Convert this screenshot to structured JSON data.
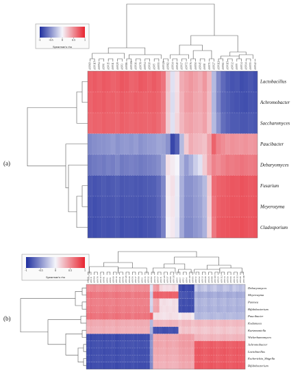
{
  "colors": {
    "negative": "#1f2f9f",
    "neutral": "#f5f5fb",
    "positive": "#e8242f",
    "dendrogram": "#555555"
  },
  "chart_data": [
    {
      "panel_label": "(a)",
      "type": "heatmap",
      "colorbar": {
        "title": "Spearman's rho",
        "ticks": [
          "-1",
          "-0.5",
          "0",
          "0.5",
          "1"
        ],
        "range": [
          -1,
          1
        ]
      },
      "rows": [
        "Lactobacillus",
        "Achromobacter",
        "Saccharomyces",
        "Paucibacter",
        "Debaryomyces",
        "Fusarium",
        "Meyerozyma",
        "Cladosporium"
      ],
      "columns": [
        "ASV69",
        "ASV117",
        "ASV94",
        "ASV6",
        "ASV15",
        "ASV11",
        "ASV29",
        "ASV3",
        "ASV86",
        "ASV106",
        "ASV16",
        "ASV78",
        "ASV54",
        "ASV10",
        "ASV5",
        "ASV55",
        "ASV126",
        "ASV82",
        "ASV14",
        "ASV40",
        "ASV17",
        "ASV72",
        "ASV76",
        "ASV50",
        "ASV45",
        "ASV8",
        "ASV71",
        "ASV27",
        "ASV112",
        "ASV61",
        "ASV115",
        "ASV32",
        "ASV9",
        "ASV34",
        "ASV14",
        "ASV55",
        "ASV42"
      ],
      "values": [
        [
          0.72,
          0.74,
          0.71,
          0.75,
          0.73,
          0.7,
          0.72,
          0.76,
          0.74,
          0.69,
          0.71,
          0.75,
          0.73,
          0.7,
          0.74,
          0.7,
          0.62,
          0.25,
          -0.1,
          0.1,
          0.35,
          0.4,
          0.45,
          0.4,
          0.35,
          0.45,
          0.3,
          -0.3,
          -0.55,
          -0.7,
          -0.78,
          -0.82,
          -0.8,
          -0.85,
          -0.83,
          -0.8,
          -0.84
        ],
        [
          0.7,
          0.73,
          0.72,
          0.74,
          0.71,
          0.72,
          0.7,
          0.74,
          0.72,
          0.7,
          0.73,
          0.72,
          0.7,
          0.71,
          0.72,
          0.69,
          0.6,
          0.22,
          -0.12,
          0.12,
          0.32,
          0.42,
          0.44,
          0.38,
          0.36,
          0.42,
          0.28,
          -0.32,
          -0.56,
          -0.72,
          -0.76,
          -0.8,
          -0.82,
          -0.83,
          -0.84,
          -0.81,
          -0.82
        ],
        [
          0.68,
          0.7,
          0.69,
          0.72,
          0.7,
          0.7,
          0.68,
          0.72,
          0.7,
          0.68,
          0.7,
          0.7,
          0.69,
          0.68,
          0.7,
          0.66,
          0.58,
          0.2,
          -0.1,
          0.15,
          0.3,
          0.38,
          0.4,
          0.36,
          0.34,
          0.4,
          0.26,
          -0.3,
          -0.5,
          -0.68,
          -0.74,
          -0.78,
          -0.78,
          -0.8,
          -0.8,
          -0.78,
          -0.8
        ],
        [
          -0.55,
          -0.52,
          -0.5,
          -0.5,
          -0.48,
          -0.45,
          -0.5,
          -0.47,
          -0.46,
          -0.48,
          -0.45,
          -0.5,
          -0.47,
          -0.45,
          -0.44,
          -0.4,
          -0.42,
          -0.5,
          -0.88,
          -0.75,
          -0.3,
          0.2,
          0.35,
          0.3,
          0.28,
          0.25,
          0.4,
          0.7,
          0.55,
          0.5,
          0.45,
          0.48,
          0.46,
          0.45,
          0.47,
          0.44,
          0.46
        ],
        [
          -0.65,
          -0.62,
          -0.6,
          -0.62,
          -0.58,
          -0.6,
          -0.55,
          -0.62,
          -0.6,
          -0.58,
          -0.6,
          -0.62,
          -0.6,
          -0.58,
          -0.56,
          -0.52,
          -0.4,
          0.1,
          0.05,
          0.0,
          -0.3,
          -0.45,
          -0.35,
          -0.2,
          -0.1,
          0.2,
          0.4,
          0.55,
          0.5,
          0.55,
          0.6,
          0.58,
          0.6,
          0.62,
          0.6,
          0.58,
          0.6
        ],
        [
          -0.8,
          -0.82,
          -0.8,
          -0.78,
          -0.8,
          -0.78,
          -0.76,
          -0.8,
          -0.79,
          -0.78,
          -0.8,
          -0.8,
          -0.78,
          -0.77,
          -0.76,
          -0.7,
          -0.55,
          0.05,
          0.1,
          -0.05,
          -0.35,
          -0.5,
          -0.5,
          -0.45,
          -0.4,
          -0.3,
          0.2,
          0.65,
          0.7,
          0.72,
          0.74,
          0.76,
          0.75,
          0.78,
          0.76,
          0.74,
          0.76
        ],
        [
          -0.82,
          -0.84,
          -0.82,
          -0.8,
          -0.81,
          -0.8,
          -0.78,
          -0.82,
          -0.8,
          -0.8,
          -0.81,
          -0.82,
          -0.8,
          -0.79,
          -0.78,
          -0.72,
          -0.56,
          0.04,
          0.08,
          -0.06,
          -0.36,
          -0.52,
          -0.52,
          -0.46,
          -0.42,
          -0.32,
          0.18,
          0.62,
          0.72,
          0.74,
          0.75,
          0.77,
          0.76,
          0.78,
          0.77,
          0.75,
          0.77
        ],
        [
          -0.84,
          -0.85,
          -0.83,
          -0.82,
          -0.83,
          -0.82,
          -0.8,
          -0.84,
          -0.82,
          -0.82,
          -0.83,
          -0.84,
          -0.82,
          -0.81,
          -0.8,
          -0.74,
          -0.58,
          0.02,
          0.06,
          -0.08,
          -0.38,
          -0.54,
          -0.54,
          -0.48,
          -0.44,
          -0.34,
          0.16,
          0.6,
          0.74,
          0.76,
          0.77,
          0.78,
          0.78,
          0.8,
          0.78,
          0.76,
          0.78
        ]
      ]
    },
    {
      "panel_label": "(b)",
      "type": "heatmap",
      "colorbar": {
        "title": "Spearman's rho",
        "ticks": [
          "-1",
          "-0.5",
          "0",
          "0.5",
          "1"
        ],
        "range": [
          -1,
          1
        ]
      },
      "rows": [
        "Debaryomyces",
        "Meyerozyma",
        "Pantoea",
        "Bifidobacterium",
        "Paucibacter",
        "Kodamaea",
        "Kurtzmaniella",
        "Wickerhamomyces",
        "Achromobacter",
        "Lactobacillus",
        "Escherichia_Shigella",
        "Bifidobacterium"
      ],
      "columns": [
        "ASV61",
        "ASV11",
        "ASV94",
        "ASV78",
        "ASV117",
        "ASV91",
        "ASV6",
        "ASV9",
        "ASV69",
        "ASV10",
        "ASV41",
        "ASV42",
        "ASV126",
        "ASV29",
        "ASV56",
        "ASV17",
        "ASV90",
        "ASV3",
        "ASV15",
        "ASV32",
        "ASV82",
        "ASV74",
        "ASV57",
        "ASV71",
        "ASV125",
        "ASV37",
        "ASV96",
        "ASV135",
        "ASV5",
        "ASV7",
        "ASV2",
        "ASV4",
        "ASV107",
        "ASV85",
        "ASV72",
        "ASV52",
        "ASV13",
        "ASV39",
        "ASV26",
        "ASV88",
        "ASV118",
        "ASV25",
        "ASV112",
        "ASV14",
        "ASV50",
        "ASV60",
        "ASV16",
        "ASV115",
        "ASV40",
        "ASV106"
      ],
      "values": [
        [
          0.5,
          0.5,
          0.52,
          0.48,
          0.5,
          0.52,
          0.5,
          0.48,
          0.5,
          0.52,
          0.5,
          0.48,
          0.5,
          0.5,
          0.46,
          0.5,
          0.5,
          0.48,
          0.5,
          0.5,
          -0.1,
          0.4,
          0.45,
          0.15,
          0.1,
          0.12,
          0.1,
          0.15,
          0.1,
          -0.85,
          -0.9,
          -0.85,
          -0.88,
          -0.9,
          -0.2,
          -0.3,
          -0.25,
          -0.2,
          -0.3,
          -0.25,
          -0.2,
          -0.28,
          -0.3,
          -0.22,
          -0.25,
          -0.3,
          -0.2,
          -0.25,
          -0.28,
          -0.22
        ],
        [
          0.6,
          0.62,
          0.6,
          0.58,
          0.6,
          0.62,
          0.6,
          0.58,
          0.6,
          0.62,
          0.6,
          0.58,
          0.6,
          0.6,
          0.56,
          0.6,
          0.6,
          0.58,
          0.6,
          0.6,
          -0.2,
          0.7,
          0.72,
          0.7,
          0.68,
          0.7,
          0.72,
          0.7,
          0.7,
          -0.8,
          -0.82,
          -0.8,
          -0.84,
          -0.82,
          -0.35,
          -0.4,
          -0.38,
          -0.35,
          -0.4,
          -0.38,
          -0.35,
          -0.4,
          -0.38,
          -0.35,
          -0.4,
          -0.38,
          -0.35,
          -0.4,
          -0.38,
          -0.35
        ],
        [
          0.55,
          0.58,
          0.56,
          0.55,
          0.56,
          0.58,
          0.55,
          0.56,
          0.55,
          0.58,
          0.56,
          0.55,
          0.56,
          0.55,
          0.54,
          0.56,
          0.55,
          0.56,
          0.55,
          0.56,
          -0.15,
          0.35,
          0.38,
          0.1,
          0.12,
          0.1,
          0.08,
          0.12,
          0.1,
          -0.82,
          -0.85,
          -0.82,
          -0.85,
          -0.84,
          -0.3,
          -0.35,
          -0.32,
          -0.3,
          -0.35,
          -0.32,
          -0.3,
          -0.35,
          -0.32,
          -0.3,
          -0.35,
          -0.32,
          -0.3,
          -0.35,
          -0.32,
          -0.3
        ],
        [
          0.58,
          0.6,
          0.58,
          0.56,
          0.58,
          0.6,
          0.58,
          0.56,
          0.58,
          0.6,
          0.58,
          0.56,
          0.58,
          0.58,
          0.55,
          0.58,
          0.58,
          0.56,
          0.58,
          0.58,
          -0.18,
          0.38,
          0.4,
          0.12,
          0.1,
          0.12,
          0.1,
          0.12,
          0.1,
          -0.84,
          -0.86,
          -0.84,
          -0.86,
          -0.85,
          -0.32,
          -0.36,
          -0.34,
          -0.32,
          -0.36,
          -0.34,
          -0.32,
          -0.36,
          -0.34,
          -0.32,
          -0.36,
          -0.34,
          -0.32,
          -0.36,
          -0.34,
          -0.32
        ],
        [
          0.62,
          0.64,
          0.62,
          0.6,
          0.62,
          0.64,
          0.62,
          0.6,
          0.62,
          0.64,
          0.62,
          0.6,
          0.62,
          0.62,
          0.58,
          0.62,
          0.62,
          0.6,
          0.62,
          0.62,
          0.7,
          0.1,
          0.12,
          0.1,
          0.08,
          0.1,
          0.12,
          0.1,
          0.1,
          0.05,
          0.1,
          0.08,
          0.1,
          0.05,
          -0.3,
          -0.32,
          -0.3,
          -0.28,
          -0.3,
          -0.32,
          -0.3,
          -0.28,
          -0.3,
          -0.32,
          -0.3,
          -0.28,
          -0.3,
          -0.32,
          -0.3,
          -0.28
        ],
        [
          0.35,
          0.38,
          0.36,
          0.35,
          0.36,
          0.38,
          0.35,
          0.36,
          0.35,
          0.38,
          0.36,
          0.35,
          0.36,
          0.35,
          0.34,
          0.36,
          0.35,
          0.36,
          0.35,
          0.36,
          -0.3,
          0.3,
          0.32,
          0.3,
          0.28,
          0.3,
          0.32,
          0.3,
          0.3,
          0.25,
          0.3,
          0.28,
          0.3,
          0.25,
          0.28,
          0.3,
          0.28,
          0.26,
          0.28,
          0.3,
          0.28,
          0.26,
          0.28,
          0.3,
          0.28,
          0.26,
          0.28,
          0.3,
          0.28,
          0.26
        ],
        [
          0.32,
          0.35,
          0.33,
          0.32,
          0.33,
          0.35,
          0.32,
          0.33,
          0.32,
          0.35,
          0.33,
          0.32,
          0.33,
          0.32,
          0.31,
          0.33,
          0.32,
          0.33,
          0.32,
          0.33,
          -0.35,
          -0.82,
          -0.84,
          -0.82,
          -0.85,
          -0.84,
          -0.82,
          -0.84,
          -0.82,
          0.2,
          0.25,
          0.22,
          0.25,
          0.2,
          0.22,
          0.25,
          0.22,
          0.2,
          0.22,
          0.25,
          0.22,
          0.2,
          0.22,
          0.25,
          0.22,
          0.2,
          0.22,
          0.25,
          0.22,
          0.2
        ],
        [
          -0.85,
          -0.88,
          -0.86,
          -0.85,
          -0.86,
          -0.88,
          -0.85,
          -0.86,
          -0.85,
          -0.88,
          -0.86,
          -0.85,
          -0.86,
          -0.85,
          -0.84,
          -0.86,
          -0.85,
          -0.86,
          -0.85,
          -0.86,
          -0.5,
          0.35,
          0.38,
          0.36,
          0.35,
          0.38,
          0.36,
          0.35,
          0.36,
          0.4,
          0.42,
          0.4,
          0.42,
          0.4,
          0.3,
          0.32,
          0.3,
          0.28,
          0.3,
          0.32,
          0.3,
          0.28,
          0.3,
          0.32,
          0.3,
          0.28,
          0.3,
          0.32,
          0.3,
          0.28
        ],
        [
          -0.82,
          -0.85,
          -0.83,
          -0.82,
          -0.83,
          -0.85,
          -0.82,
          -0.83,
          -0.82,
          -0.85,
          -0.83,
          -0.82,
          -0.83,
          -0.82,
          -0.81,
          -0.83,
          -0.82,
          -0.83,
          -0.82,
          -0.83,
          -0.48,
          0.38,
          0.4,
          0.38,
          0.36,
          0.4,
          0.38,
          0.36,
          0.38,
          0.42,
          0.44,
          0.42,
          0.44,
          0.42,
          0.72,
          0.74,
          0.72,
          0.7,
          0.72,
          0.74,
          0.72,
          0.7,
          0.72,
          0.74,
          0.72,
          0.7,
          0.72,
          0.74,
          0.72,
          0.7
        ],
        [
          -0.84,
          -0.86,
          -0.84,
          -0.83,
          -0.84,
          -0.86,
          -0.84,
          -0.84,
          -0.84,
          -0.86,
          -0.84,
          -0.83,
          -0.84,
          -0.84,
          -0.82,
          -0.84,
          -0.84,
          -0.84,
          -0.84,
          -0.84,
          -0.5,
          0.36,
          0.38,
          0.36,
          0.35,
          0.38,
          0.36,
          0.35,
          0.36,
          0.4,
          0.42,
          0.4,
          0.42,
          0.4,
          0.74,
          0.76,
          0.74,
          0.72,
          0.74,
          0.76,
          0.74,
          0.72,
          0.74,
          0.76,
          0.74,
          0.72,
          0.74,
          0.76,
          0.74,
          0.72
        ],
        [
          -0.83,
          -0.85,
          -0.83,
          -0.82,
          -0.83,
          -0.85,
          -0.83,
          -0.83,
          -0.83,
          -0.85,
          -0.83,
          -0.82,
          -0.83,
          -0.83,
          -0.81,
          -0.83,
          -0.83,
          -0.83,
          -0.83,
          -0.83,
          -0.52,
          0.34,
          0.36,
          0.34,
          0.33,
          0.36,
          0.34,
          0.33,
          0.34,
          0.38,
          0.4,
          0.38,
          0.4,
          0.38,
          0.73,
          0.75,
          0.73,
          0.71,
          0.73,
          0.75,
          0.73,
          0.71,
          0.73,
          0.75,
          0.73,
          0.71,
          0.73,
          0.75,
          0.73,
          0.71
        ],
        [
          -0.85,
          -0.87,
          -0.85,
          -0.84,
          -0.85,
          -0.87,
          -0.85,
          -0.85,
          -0.85,
          -0.87,
          -0.85,
          -0.84,
          -0.85,
          -0.85,
          -0.83,
          -0.85,
          -0.85,
          -0.85,
          -0.85,
          -0.85,
          -0.54,
          0.32,
          0.34,
          0.32,
          0.31,
          0.34,
          0.32,
          0.31,
          0.32,
          0.36,
          0.38,
          0.36,
          0.38,
          0.36,
          0.75,
          0.77,
          0.75,
          0.73,
          0.75,
          0.77,
          0.75,
          0.73,
          0.75,
          0.77,
          0.75,
          0.73,
          0.75,
          0.77,
          0.75,
          0.73
        ]
      ]
    }
  ]
}
